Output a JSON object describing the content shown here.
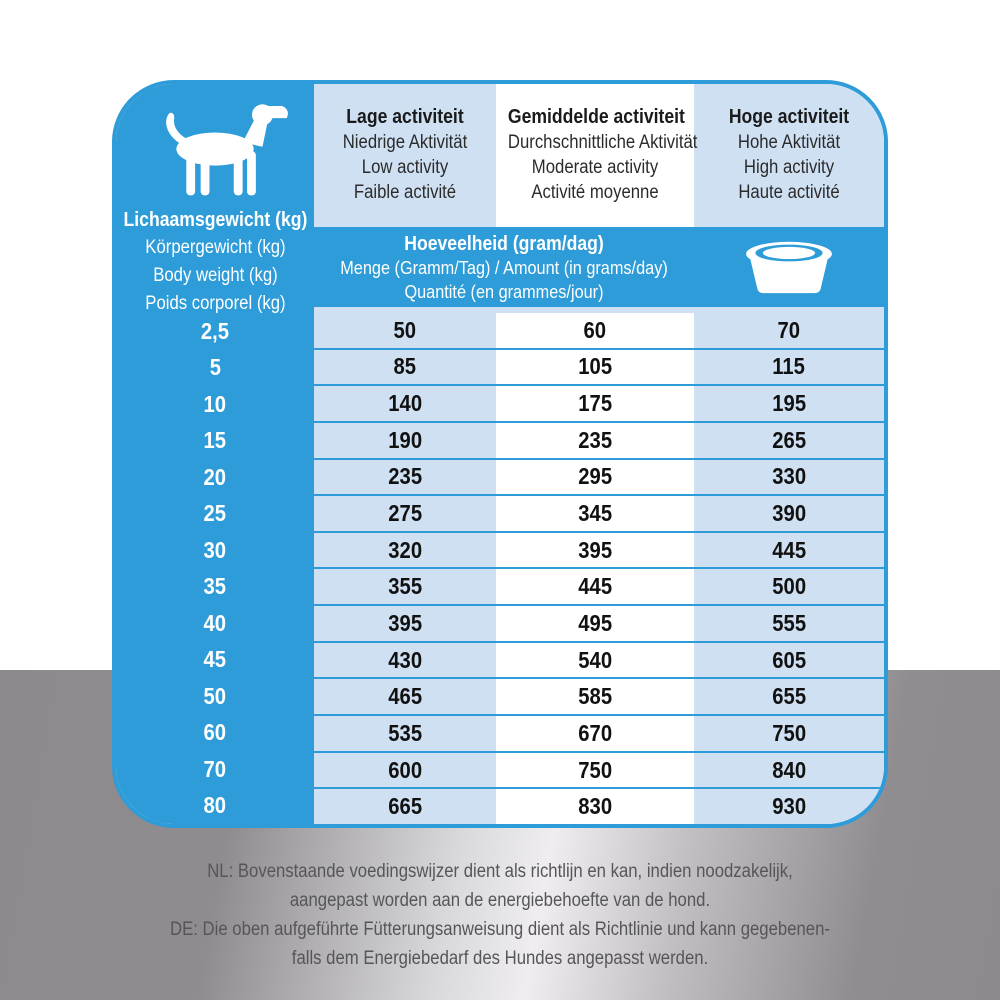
{
  "colors": {
    "blue": "#2d9cd8",
    "light_blue": "#cfe0f3",
    "text_dark": "#1a1a1a",
    "note_gray": "#56555a",
    "background_gray": "#8f8c8f"
  },
  "table": {
    "weight_header": {
      "lines": [
        "Lichaamsgewicht (kg)",
        "Körpergewicht (kg)",
        "Body weight (kg)",
        "Poids corporel (kg)"
      ]
    },
    "activity_columns": [
      {
        "lines": [
          "Lage activiteit",
          "Niedrige Aktivität",
          "Low activity",
          "Faible activité"
        ]
      },
      {
        "lines": [
          "Gemiddelde activiteit",
          "Durchschnittliche Aktivität",
          "Moderate activity",
          "Activité moyenne"
        ]
      },
      {
        "lines": [
          "Hoge activiteit",
          "Hohe Aktivität",
          "High activity",
          "Haute activité"
        ]
      }
    ],
    "amount_header": {
      "lines": [
        "Hoeveelheid (gram/dag)",
        "Menge (Gramm/Tag) / Amount (in grams/day)",
        "Quantité (en grammes/jour)"
      ]
    },
    "icons": {
      "dog": "dog-silhouette",
      "bowl": "dog-bowl"
    },
    "rows": [
      {
        "weight": "2,5",
        "values": [
          "50",
          "60",
          "70"
        ]
      },
      {
        "weight": "5",
        "values": [
          "85",
          "105",
          "115"
        ]
      },
      {
        "weight": "10",
        "values": [
          "140",
          "175",
          "195"
        ]
      },
      {
        "weight": "15",
        "values": [
          "190",
          "235",
          "265"
        ]
      },
      {
        "weight": "20",
        "values": [
          "235",
          "295",
          "330"
        ]
      },
      {
        "weight": "25",
        "values": [
          "275",
          "345",
          "390"
        ]
      },
      {
        "weight": "30",
        "values": [
          "320",
          "395",
          "445"
        ]
      },
      {
        "weight": "35",
        "values": [
          "355",
          "445",
          "500"
        ]
      },
      {
        "weight": "40",
        "values": [
          "395",
          "495",
          "555"
        ]
      },
      {
        "weight": "45",
        "values": [
          "430",
          "540",
          "605"
        ]
      },
      {
        "weight": "50",
        "values": [
          "465",
          "585",
          "655"
        ]
      },
      {
        "weight": "60",
        "values": [
          "535",
          "670",
          "750"
        ]
      },
      {
        "weight": "70",
        "values": [
          "600",
          "750",
          "840"
        ]
      },
      {
        "weight": "80",
        "values": [
          "665",
          "830",
          "930"
        ]
      }
    ]
  },
  "notes": {
    "lines": [
      "NL: Bovenstaande voedingswijzer dient als richtlijn en kan, indien noodzakelijk,",
      "aangepast worden aan de energiebehoefte van de hond.",
      "DE: Die oben aufgeführte Fütterungsanweisung dient als Richtlinie und kann gegebenen-",
      "falls dem Energiebedarf des Hundes angepasst werden."
    ]
  }
}
